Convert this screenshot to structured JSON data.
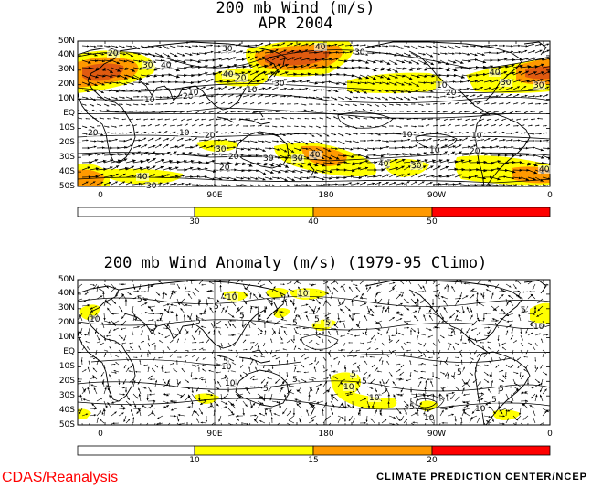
{
  "panels": [
    {
      "id": "wind",
      "title_line1": "200 mb Wind (m/s)",
      "title_line2": "APR 2004",
      "lat_labels": [
        "50N",
        "40N",
        "30N",
        "20N",
        "10N",
        "EQ",
        "10S",
        "20S",
        "30S",
        "40S",
        "50S"
      ],
      "lon_labels": [
        "0",
        "90E",
        "180",
        "90W",
        "0"
      ],
      "colorbar_labels": [
        "30",
        "40",
        "50"
      ],
      "colorbar_colors": [
        "#ffffff",
        "#ffff00",
        "#ff9900",
        "#ff0000"
      ],
      "contour_labels": [
        "20",
        "30",
        "40",
        "40",
        "30",
        "30",
        "20",
        "10",
        "40",
        "30",
        "20",
        "10",
        "10",
        "20",
        "20",
        "10",
        "30",
        "20",
        "30",
        "40",
        "30",
        "20",
        "40",
        "30",
        "10",
        "40",
        "30",
        "20",
        "10",
        "10",
        "40",
        "30",
        "30",
        "40",
        "20",
        "10"
      ],
      "speed_bands": [
        {
          "lon_range": [
            -25,
            30
          ],
          "lat_range": [
            15,
            40
          ],
          "level": "40-50"
        },
        {
          "lon_range": [
            130,
            195
          ],
          "lat_range": [
            22,
            46
          ],
          "level": "40-50"
        },
        {
          "lon_range": [
            -30,
            0
          ],
          "lat_range": [
            -48,
            -38
          ],
          "level": "40-50"
        },
        {
          "lon_range": [
            160,
            200
          ],
          "lat_range": [
            -40,
            -22
          ],
          "level": "40-50"
        }
      ]
    },
    {
      "id": "anomaly",
      "title": "200 mb Wind Anomaly (m/s) (1979-95 Climo)",
      "lat_labels": [
        "50N",
        "40N",
        "30N",
        "20N",
        "10N",
        "EQ",
        "10S",
        "20S",
        "30S",
        "40S",
        "50S"
      ],
      "lon_labels": [
        "0",
        "90E",
        "180",
        "90W",
        "0"
      ],
      "colorbar_labels": [
        "10",
        "15",
        "20"
      ],
      "colorbar_colors": [
        "#ffffff",
        "#ffff00",
        "#ff9900",
        "#ff0000"
      ],
      "contour_labels": [
        "10",
        "5",
        "5",
        "10",
        "5",
        "5",
        "10",
        "5",
        "5",
        "5",
        "10",
        "5",
        "10",
        "5",
        "5",
        "10",
        "5",
        "5",
        "10",
        "5",
        "10",
        "5",
        "10",
        "5",
        "5",
        "10",
        "5"
      ]
    }
  ],
  "footer": {
    "left": "CDAS/Reanalysis",
    "right": "CLIMATE PREDICTION CENTER/NCEP"
  },
  "colors": {
    "yellow": "#ffff00",
    "orange": "#ff9900",
    "red": "#ff0000",
    "deep_orange": "#e05a10",
    "footer_left": "#ff0000"
  }
}
